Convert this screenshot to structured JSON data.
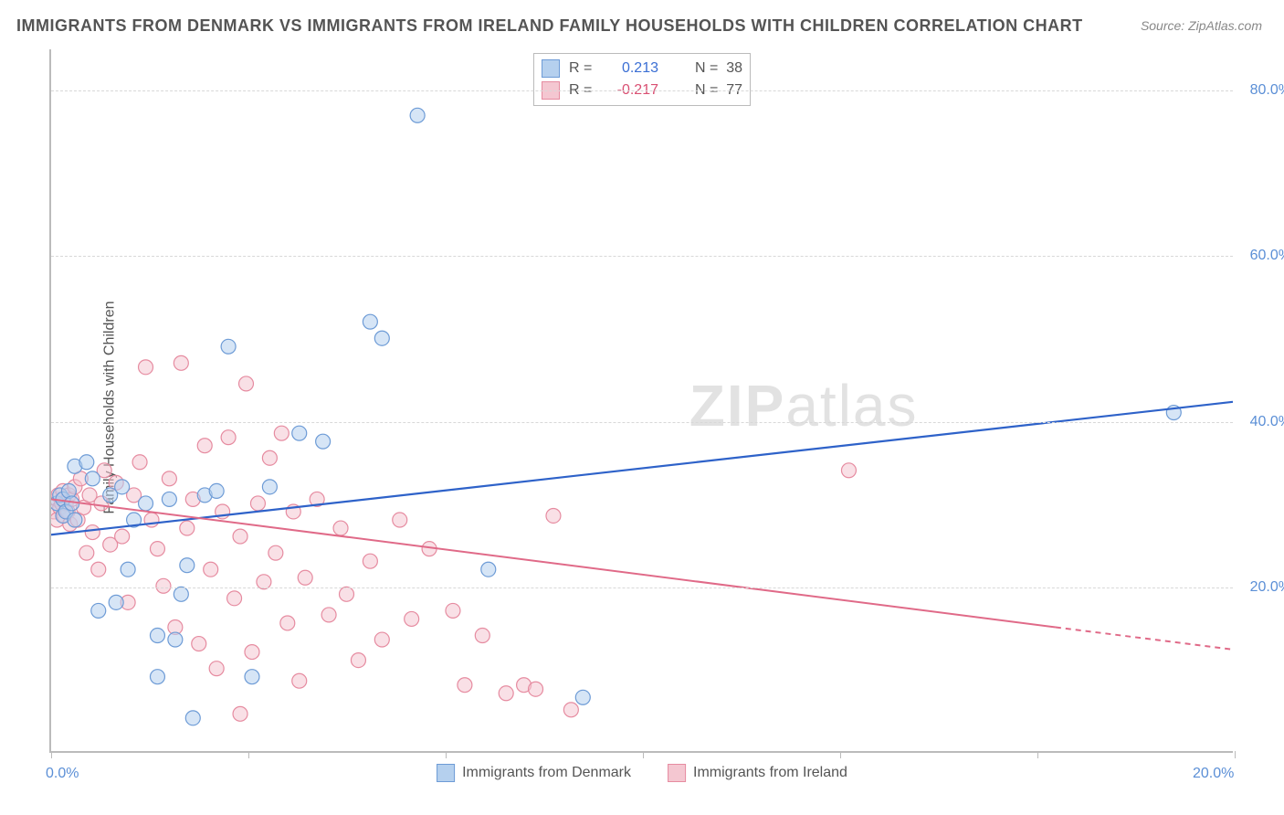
{
  "title": "IMMIGRANTS FROM DENMARK VS IMMIGRANTS FROM IRELAND FAMILY HOUSEHOLDS WITH CHILDREN CORRELATION CHART",
  "source": "Source: ZipAtlas.com",
  "watermark_bold": "ZIP",
  "watermark_thin": "atlas",
  "chart": {
    "type": "scatter",
    "y_label": "Family Households with Children",
    "x_range": [
      0,
      20
    ],
    "y_range": [
      0,
      85
    ],
    "x_ticks": [
      0,
      3.33,
      6.67,
      10,
      13.33,
      16.67,
      20
    ],
    "x_tick_labels": {
      "0": "0.0%",
      "20": "20.0%"
    },
    "y_gridlines": [
      20,
      40,
      60,
      80
    ],
    "y_tick_labels": {
      "20": "20.0%",
      "40": "40.0%",
      "60": "60.0%",
      "80": "80.0%"
    },
    "background_color": "#ffffff",
    "grid_color": "#d8d8d8",
    "axis_color": "#bbbbbb",
    "marker_radius": 8,
    "marker_opacity": 0.55,
    "series": [
      {
        "name": "Immigrants from Denmark",
        "color_fill": "#b5d0ee",
        "color_stroke": "#6d9bd6",
        "r_value": "0.213",
        "r_color": "#3b6fd4",
        "n_value": "38",
        "trend": {
          "x1": 0,
          "y1": 26.2,
          "x2": 20,
          "y2": 42.3,
          "color": "#2e62c9",
          "width": 2.2
        },
        "points": [
          [
            0.1,
            30.0
          ],
          [
            0.15,
            31.0
          ],
          [
            0.2,
            28.5
          ],
          [
            0.2,
            30.5
          ],
          [
            0.25,
            29.0
          ],
          [
            0.3,
            31.5
          ],
          [
            0.35,
            30.0
          ],
          [
            0.4,
            28.0
          ],
          [
            0.4,
            34.5
          ],
          [
            0.6,
            35.0
          ],
          [
            0.7,
            33.0
          ],
          [
            0.8,
            17.0
          ],
          [
            1.0,
            31.0
          ],
          [
            1.1,
            18.0
          ],
          [
            1.2,
            32.0
          ],
          [
            1.3,
            22.0
          ],
          [
            1.4,
            28.0
          ],
          [
            1.6,
            30.0
          ],
          [
            1.8,
            14.0
          ],
          [
            1.8,
            9.0
          ],
          [
            2.0,
            30.5
          ],
          [
            2.1,
            13.5
          ],
          [
            2.2,
            19.0
          ],
          [
            2.3,
            22.5
          ],
          [
            2.4,
            4.0
          ],
          [
            2.6,
            31.0
          ],
          [
            2.8,
            31.5
          ],
          [
            3.0,
            49.0
          ],
          [
            3.4,
            9.0
          ],
          [
            3.7,
            32.0
          ],
          [
            4.2,
            38.5
          ],
          [
            4.6,
            37.5
          ],
          [
            5.4,
            52.0
          ],
          [
            5.6,
            50.0
          ],
          [
            6.2,
            77.0
          ],
          [
            7.4,
            22.0
          ],
          [
            9.0,
            6.5
          ],
          [
            19.0,
            41.0
          ]
        ]
      },
      {
        "name": "Immigrants from Ireland",
        "color_fill": "#f4c7d1",
        "color_stroke": "#e68ba0",
        "r_value": "-0.217",
        "r_color": "#d94f72",
        "n_value": "77",
        "trend": {
          "x1": 0,
          "y1": 30.5,
          "x2": 17,
          "y2": 15.0,
          "x3": 20,
          "y3": 12.3,
          "color": "#e06a88",
          "width": 2.0,
          "dash_after": 17
        },
        "points": [
          [
            0.05,
            29.0
          ],
          [
            0.1,
            30.5
          ],
          [
            0.1,
            28.0
          ],
          [
            0.12,
            31.0
          ],
          [
            0.15,
            29.5
          ],
          [
            0.18,
            30.0
          ],
          [
            0.2,
            31.5
          ],
          [
            0.22,
            28.5
          ],
          [
            0.25,
            30.0
          ],
          [
            0.28,
            29.0
          ],
          [
            0.3,
            31.0
          ],
          [
            0.32,
            27.5
          ],
          [
            0.35,
            30.5
          ],
          [
            0.4,
            32.0
          ],
          [
            0.45,
            28.0
          ],
          [
            0.5,
            33.0
          ],
          [
            0.55,
            29.5
          ],
          [
            0.6,
            24.0
          ],
          [
            0.65,
            31.0
          ],
          [
            0.7,
            26.5
          ],
          [
            0.8,
            22.0
          ],
          [
            0.85,
            30.0
          ],
          [
            0.9,
            34.0
          ],
          [
            1.0,
            25.0
          ],
          [
            1.1,
            32.5
          ],
          [
            1.2,
            26.0
          ],
          [
            1.3,
            18.0
          ],
          [
            1.4,
            31.0
          ],
          [
            1.5,
            35.0
          ],
          [
            1.6,
            46.5
          ],
          [
            1.7,
            28.0
          ],
          [
            1.8,
            24.5
          ],
          [
            1.9,
            20.0
          ],
          [
            2.0,
            33.0
          ],
          [
            2.1,
            15.0
          ],
          [
            2.2,
            47.0
          ],
          [
            2.3,
            27.0
          ],
          [
            2.4,
            30.5
          ],
          [
            2.5,
            13.0
          ],
          [
            2.6,
            37.0
          ],
          [
            2.7,
            22.0
          ],
          [
            2.8,
            10.0
          ],
          [
            2.9,
            29.0
          ],
          [
            3.0,
            38.0
          ],
          [
            3.1,
            18.5
          ],
          [
            3.2,
            26.0
          ],
          [
            3.3,
            44.5
          ],
          [
            3.4,
            12.0
          ],
          [
            3.5,
            30.0
          ],
          [
            3.6,
            20.5
          ],
          [
            3.7,
            35.5
          ],
          [
            3.8,
            24.0
          ],
          [
            3.9,
            38.5
          ],
          [
            4.0,
            15.5
          ],
          [
            4.1,
            29.0
          ],
          [
            4.2,
            8.5
          ],
          [
            4.3,
            21.0
          ],
          [
            4.5,
            30.5
          ],
          [
            4.7,
            16.5
          ],
          [
            4.9,
            27.0
          ],
          [
            5.0,
            19.0
          ],
          [
            5.2,
            11.0
          ],
          [
            5.4,
            23.0
          ],
          [
            5.6,
            13.5
          ],
          [
            5.9,
            28.0
          ],
          [
            6.1,
            16.0
          ],
          [
            6.4,
            24.5
          ],
          [
            6.8,
            17.0
          ],
          [
            7.0,
            8.0
          ],
          [
            7.3,
            14.0
          ],
          [
            7.7,
            7.0
          ],
          [
            8.0,
            8.0
          ],
          [
            8.2,
            7.5
          ],
          [
            8.5,
            28.5
          ],
          [
            8.8,
            5.0
          ],
          [
            13.5,
            34.0
          ],
          [
            3.2,
            4.5
          ]
        ]
      }
    ]
  }
}
